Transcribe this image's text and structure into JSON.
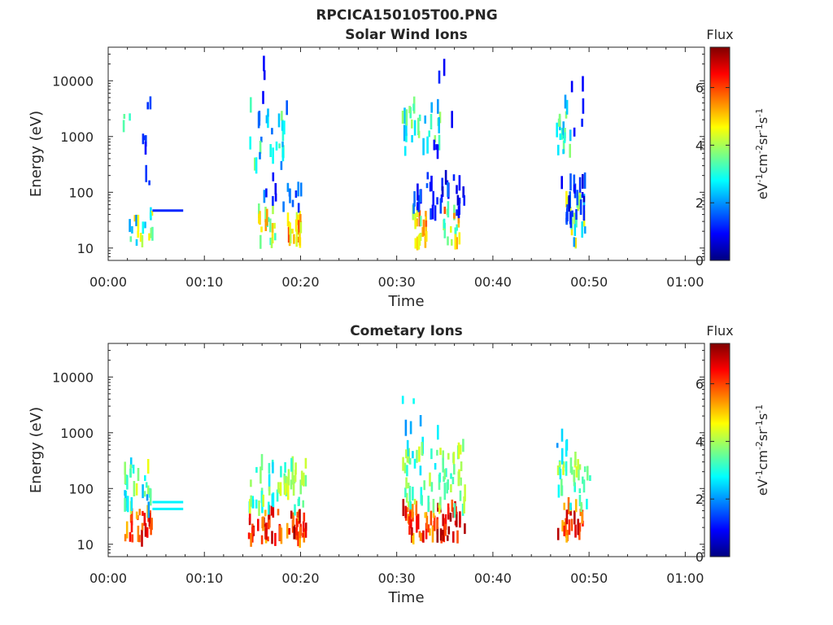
{
  "figure": {
    "title": "RPCICA150105T00.PNG"
  },
  "colormap": {
    "name": "jet",
    "stops": [
      "#00007f",
      "#0000ff",
      "#007fff",
      "#00ffff",
      "#7fff7f",
      "#ffff00",
      "#ff7f00",
      "#ff0000",
      "#7f0000"
    ]
  },
  "chart_data": [
    {
      "type": "heatmap",
      "title": "Solar Wind Ions",
      "xlabel": "Time",
      "ylabel": "Energy (eV)",
      "x_ticks": [
        "00:00",
        "00:10",
        "00:20",
        "00:30",
        "00:40",
        "00:50",
        "01:00"
      ],
      "x_range_minutes": [
        0,
        62
      ],
      "y_scale": "log",
      "y_ticks": [
        10,
        100,
        1000,
        10000
      ],
      "y_range": [
        6,
        40000
      ],
      "grid": false,
      "colorbar": {
        "title": "Flux",
        "label": "eV-1cm-2sr-1s-1",
        "range": [
          0,
          7.4
        ],
        "ticks": [
          0,
          2,
          4,
          6
        ]
      },
      "clusters": [
        {
          "t": [
            1.5,
            2.2
          ],
          "e": [
            1500,
            2500
          ],
          "v": [
            3,
            3.5
          ],
          "n": 3
        },
        {
          "t": [
            2.0,
            4.5
          ],
          "e": [
            12,
            45
          ],
          "v": [
            1.5,
            5
          ],
          "n": 18
        },
        {
          "t": [
            3.5,
            4.5
          ],
          "e": [
            100,
            15000
          ],
          "v": [
            0.8,
            1.5
          ],
          "n": 8
        },
        {
          "t": [
            14.5,
            18.5
          ],
          "e": [
            300,
            4000
          ],
          "v": [
            1.5,
            4
          ],
          "n": 30
        },
        {
          "t": [
            15.5,
            17.5
          ],
          "e": [
            12,
            50
          ],
          "v": [
            3,
            5.5
          ],
          "n": 20
        },
        {
          "t": [
            18.5,
            20.0
          ],
          "e": [
            12,
            40
          ],
          "v": [
            4,
            6
          ],
          "n": 20
        },
        {
          "t": [
            16,
            20
          ],
          "e": [
            50,
            200
          ],
          "v": [
            0.8,
            2
          ],
          "n": 15
        },
        {
          "t": [
            16,
            17
          ],
          "e": [
            4000,
            35000
          ],
          "v": [
            0.8,
            1.2
          ],
          "n": 3
        },
        {
          "t": [
            30.5,
            34.5
          ],
          "e": [
            500,
            4000
          ],
          "v": [
            2,
            4
          ],
          "n": 30
        },
        {
          "t": [
            31.5,
            33
          ],
          "e": [
            12,
            50
          ],
          "v": [
            3.5,
            6
          ],
          "n": 20
        },
        {
          "t": [
            34.5,
            36.5
          ],
          "e": [
            12,
            60
          ],
          "v": [
            3,
            6
          ],
          "n": 20
        },
        {
          "t": [
            31,
            37
          ],
          "e": [
            40,
            200
          ],
          "v": [
            0.5,
            2
          ],
          "n": 35
        },
        {
          "t": [
            33,
            36
          ],
          "e": [
            500,
            30000
          ],
          "v": [
            0.8,
            1.2
          ],
          "n": 6
        },
        {
          "t": [
            46.5,
            48
          ],
          "e": [
            500,
            4500
          ],
          "v": [
            2,
            4
          ],
          "n": 20
        },
        {
          "t": [
            47.5,
            49.5
          ],
          "e": [
            12,
            80
          ],
          "v": [
            2,
            5
          ],
          "n": 20
        },
        {
          "t": [
            47,
            49.5
          ],
          "e": [
            30,
            200
          ],
          "v": [
            0.5,
            1.8
          ],
          "n": 25
        },
        {
          "t": [
            48,
            49.5
          ],
          "e": [
            1000,
            12000
          ],
          "v": [
            0.8,
            1.2
          ],
          "n": 5
        }
      ],
      "lines": [
        {
          "t0": 4.6,
          "t1": 7.8,
          "e": 47,
          "v": 1.2
        }
      ]
    },
    {
      "type": "heatmap",
      "title": "Cometary Ions",
      "xlabel": "Time",
      "ylabel": "Energy (eV)",
      "x_ticks": [
        "00:00",
        "00:10",
        "00:20",
        "00:30",
        "00:40",
        "00:50",
        "01:00"
      ],
      "x_range_minutes": [
        0,
        62
      ],
      "y_scale": "log",
      "y_ticks": [
        10,
        100,
        1000,
        10000
      ],
      "y_range": [
        6,
        40000
      ],
      "grid": false,
      "colorbar": {
        "title": "Flux",
        "label": "eV-1cm-2sr-1s-1",
        "range": [
          0,
          7.4
        ],
        "ticks": [
          0,
          2,
          4,
          6
        ]
      },
      "clusters": [
        {
          "t": [
            1.5,
            4.5
          ],
          "e": [
            12,
            40
          ],
          "v": [
            5,
            7
          ],
          "n": 25
        },
        {
          "t": [
            1.5,
            4.5
          ],
          "e": [
            40,
            300
          ],
          "v": [
            2,
            4.5
          ],
          "n": 30
        },
        {
          "t": [
            14.5,
            18
          ],
          "e": [
            12,
            40
          ],
          "v": [
            5,
            7
          ],
          "n": 30
        },
        {
          "t": [
            14.5,
            18.5
          ],
          "e": [
            40,
            300
          ],
          "v": [
            2.5,
            4.5
          ],
          "n": 35
        },
        {
          "t": [
            18.5,
            20.5
          ],
          "e": [
            12,
            40
          ],
          "v": [
            5,
            7.3
          ],
          "n": 25
        },
        {
          "t": [
            18.5,
            20.5
          ],
          "e": [
            40,
            300
          ],
          "v": [
            3,
            4.5
          ],
          "n": 20
        },
        {
          "t": [
            30.5,
            34
          ],
          "e": [
            12,
            50
          ],
          "v": [
            5,
            7
          ],
          "n": 35
        },
        {
          "t": [
            30.5,
            34
          ],
          "e": [
            40,
            600
          ],
          "v": [
            2.5,
            4.5
          ],
          "n": 35
        },
        {
          "t": [
            34,
            37
          ],
          "e": [
            12,
            50
          ],
          "v": [
            5.5,
            7.3
          ],
          "n": 30
        },
        {
          "t": [
            34,
            37
          ],
          "e": [
            40,
            600
          ],
          "v": [
            3,
            4.5
          ],
          "n": 35
        },
        {
          "t": [
            30.5,
            34.5
          ],
          "e": [
            700,
            4000
          ],
          "v": [
            1.5,
            3
          ],
          "n": 6
        },
        {
          "t": [
            46.5,
            49.5
          ],
          "e": [
            12,
            50
          ],
          "v": [
            5,
            7
          ],
          "n": 25
        },
        {
          "t": [
            46.5,
            50
          ],
          "e": [
            40,
            400
          ],
          "v": [
            2.5,
            4.5
          ],
          "n": 35
        },
        {
          "t": [
            46.5,
            48
          ],
          "e": [
            500,
            1000
          ],
          "v": [
            2,
            3
          ],
          "n": 4
        }
      ],
      "lines": [
        {
          "t0": 4.6,
          "t1": 7.8,
          "e": 57,
          "v": 2.7
        },
        {
          "t0": 4.6,
          "t1": 7.8,
          "e": 43,
          "v": 2.7
        }
      ]
    }
  ]
}
